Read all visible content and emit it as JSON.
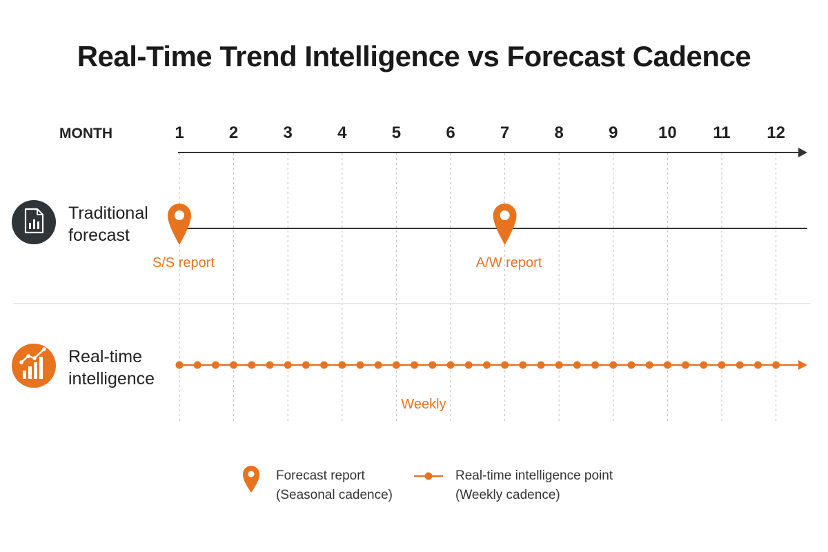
{
  "title": "Real-Time Trend Intelligence vs Forecast Cadence",
  "axis": {
    "label": "MONTH",
    "months": [
      "1",
      "2",
      "3",
      "4",
      "5",
      "6",
      "7",
      "8",
      "9",
      "10",
      "11",
      "12"
    ]
  },
  "rows": {
    "traditional": {
      "label_line1": "Traditional",
      "label_line2": "forecast",
      "icon": "document-chart-icon",
      "markers": [
        {
          "month": 1,
          "label": "S/S report"
        },
        {
          "month": 7,
          "label": "A/W report"
        }
      ]
    },
    "realtime": {
      "label_line1": "Real-time",
      "label_line2": "intelligence",
      "icon": "trend-chart-icon",
      "cadence_label": "Weekly",
      "points_per_month": 3
    }
  },
  "legend": {
    "forecast_line1": "Forecast report",
    "forecast_line2": "(Seasonal cadence)",
    "realtime_line1": "Real-time intelligence point",
    "realtime_line2": "(Weekly cadence)"
  },
  "colors": {
    "accent": "#E8731F",
    "dark": "#2E3437",
    "line": "#333333",
    "grid": "#BDBDBD"
  }
}
